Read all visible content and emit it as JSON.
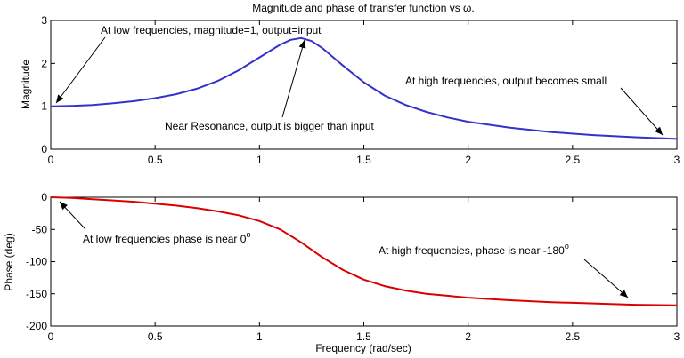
{
  "chart_data": [
    {
      "type": "line",
      "title": "Magnitude and phase of transfer function vs ω.",
      "xlabel": "",
      "ylabel": "Magnitude",
      "xlim": [
        0,
        3
      ],
      "ylim": [
        0,
        3
      ],
      "xticks": [
        0,
        0.5,
        1,
        1.5,
        2,
        2.5,
        3
      ],
      "xtick_labels": [
        "0",
        "0.5",
        "1",
        "1.5",
        "2",
        "2.5",
        "3"
      ],
      "yticks": [
        0,
        1,
        2,
        3
      ],
      "ytick_labels": [
        "0",
        "1",
        "2",
        "3"
      ],
      "grid": false,
      "series": [
        {
          "color": "#3333cc",
          "x": [
            0,
            0.1,
            0.2,
            0.3,
            0.4,
            0.5,
            0.6,
            0.7,
            0.8,
            0.9,
            1.0,
            1.1,
            1.15,
            1.2,
            1.25,
            1.3,
            1.4,
            1.5,
            1.6,
            1.7,
            1.8,
            1.9,
            2.0,
            2.2,
            2.4,
            2.6,
            2.8,
            3.0
          ],
          "y": [
            1.0,
            1.01,
            1.03,
            1.07,
            1.12,
            1.19,
            1.28,
            1.41,
            1.59,
            1.84,
            2.14,
            2.44,
            2.55,
            2.59,
            2.52,
            2.36,
            1.95,
            1.56,
            1.25,
            1.03,
            0.87,
            0.74,
            0.64,
            0.5,
            0.4,
            0.33,
            0.28,
            0.24
          ]
        }
      ],
      "annotations": [
        {
          "text": "At low frequencies, magnitude=1, output=input",
          "x": 0.02,
          "y": 1.0
        },
        {
          "text": "Near Resonance, output is bigger than input",
          "x": 1.22,
          "y": 2.6
        },
        {
          "text": "At high frequencies, output becomes small",
          "x": 2.95,
          "y": 0.25
        }
      ]
    },
    {
      "type": "line",
      "title": "",
      "xlabel": "Frequency  (rad/sec)",
      "ylabel": "Phase (deg)",
      "xlim": [
        0,
        3
      ],
      "ylim": [
        -200,
        0
      ],
      "xticks": [
        0,
        0.5,
        1,
        1.5,
        2,
        2.5,
        3
      ],
      "xtick_labels": [
        "0",
        "0.5",
        "1",
        "1.5",
        "2",
        "2.5",
        "3"
      ],
      "yticks": [
        0,
        -50,
        -100,
        -150,
        -200
      ],
      "ytick_labels": [
        "0",
        "-50",
        "-100",
        "-150",
        "-200"
      ],
      "grid": false,
      "series": [
        {
          "color": "#dd0000",
          "x": [
            0,
            0.1,
            0.2,
            0.3,
            0.4,
            0.5,
            0.6,
            0.7,
            0.8,
            0.9,
            1.0,
            1.1,
            1.2,
            1.3,
            1.4,
            1.5,
            1.6,
            1.7,
            1.8,
            1.9,
            2.0,
            2.2,
            2.4,
            2.6,
            2.8,
            3.0
          ],
          "y": [
            0,
            -1,
            -3,
            -5,
            -7,
            -10,
            -13,
            -17,
            -22,
            -28,
            -37,
            -50,
            -70,
            -93,
            -113,
            -128,
            -138,
            -145,
            -150,
            -153,
            -156,
            -160,
            -163,
            -165,
            -167,
            -168
          ]
        }
      ],
      "annotations": [
        {
          "text": "At low frequencies phase is near 0",
          "sup": "o",
          "x": 0.04,
          "y": -1
        },
        {
          "text": "At high frequencies, phase is near -180",
          "sup": "o",
          "x": 2.78,
          "y": -152
        }
      ]
    }
  ]
}
